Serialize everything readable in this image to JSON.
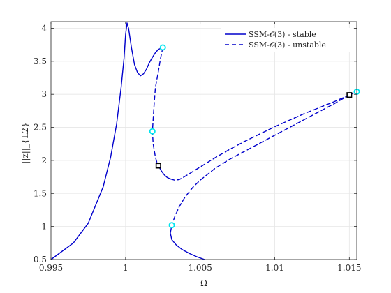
{
  "chart_data": {
    "type": "line",
    "xlabel": "Ω",
    "ylabel": "||z||_{L2}",
    "xlim": [
      0.995,
      1.0155
    ],
    "ylim": [
      0.5,
      4.1
    ],
    "xticks": [
      0.995,
      1,
      1.005,
      1.01,
      1.015
    ],
    "xtick_labels": [
      "0.995",
      "1",
      "1.005",
      "1.01",
      "1.015"
    ],
    "yticks": [
      0.5,
      1,
      1.5,
      2,
      2.5,
      3,
      3.5,
      4
    ],
    "ytick_labels": [
      "0.5",
      "1",
      "1.5",
      "2",
      "2.5",
      "3",
      "3.5",
      "4"
    ],
    "grid": true,
    "legend": {
      "placement": "top-right",
      "entries": [
        {
          "label": "SSM-𝒪(3) - stable",
          "style": "solid"
        },
        {
          "label": "SSM-𝒪(3) - unstable",
          "style": "dashed"
        }
      ]
    },
    "colors": {
      "line": "#0000cc",
      "cyan_marker": "#00e5ee",
      "black_marker": "#000000",
      "grid": "#e6e6e6"
    },
    "series": [
      {
        "style": "solid",
        "x": [
          0.995,
          0.9965,
          0.9975,
          0.9985,
          0.999,
          0.9994,
          0.9997,
          0.9999,
          1.0,
          1.0001,
          1.0002,
          1.0004,
          1.0006,
          1.0008,
          1.001,
          1.0012,
          1.0014,
          1.0016,
          1.0018,
          1.002,
          1.0022,
          1.0024,
          1.0025
        ],
        "y": [
          0.5,
          0.75,
          1.05,
          1.6,
          2.05,
          2.55,
          3.1,
          3.55,
          3.9,
          4.08,
          4.0,
          3.7,
          3.45,
          3.33,
          3.28,
          3.31,
          3.38,
          3.48,
          3.56,
          3.63,
          3.68,
          3.7,
          3.71
        ]
      },
      {
        "style": "dashed",
        "x": [
          1.0025,
          1.00235,
          1.0022,
          1.002,
          1.0019,
          1.0018,
          1.00185,
          1.002,
          1.0021,
          1.0022
        ],
        "y": [
          3.71,
          3.55,
          3.35,
          3.1,
          2.8,
          2.44,
          2.25,
          2.05,
          1.97,
          1.92
        ]
      },
      {
        "style": "solid",
        "x": [
          1.0022,
          1.0024,
          1.0026,
          1.0028,
          1.003
        ],
        "y": [
          1.92,
          1.84,
          1.78,
          1.74,
          1.72
        ]
      },
      {
        "style": "dashed",
        "x": [
          1.003,
          1.0033,
          1.0036,
          1.004,
          1.0045,
          1.005,
          1.006,
          1.007,
          1.008,
          1.009,
          1.01,
          1.011,
          1.012,
          1.013,
          1.014,
          1.015
        ],
        "y": [
          1.72,
          1.7,
          1.71,
          1.76,
          1.83,
          1.9,
          2.04,
          2.17,
          2.29,
          2.4,
          2.51,
          2.61,
          2.71,
          2.8,
          2.89,
          2.99
        ]
      },
      {
        "style": "dashed",
        "x": [
          1.015,
          1.014,
          1.013,
          1.012,
          1.011,
          1.01,
          1.009,
          1.008,
          1.007,
          1.006,
          1.005,
          1.0045,
          1.004,
          1.0036,
          1.0033,
          1.0031
        ],
        "y": [
          2.99,
          2.86,
          2.74,
          2.62,
          2.5,
          2.38,
          2.26,
          2.14,
          2.02,
          1.88,
          1.7,
          1.59,
          1.45,
          1.3,
          1.15,
          1.02
        ]
      },
      {
        "style": "solid",
        "x": [
          1.0031,
          1.003,
          1.0031,
          1.0034,
          1.0038,
          1.0043,
          1.0048,
          1.0053
        ],
        "y": [
          1.02,
          0.9,
          0.8,
          0.72,
          0.65,
          0.59,
          0.54,
          0.5
        ]
      },
      {
        "style": "dashed",
        "x": [
          1.015,
          1.0155
        ],
        "y": [
          2.99,
          3.04
        ]
      }
    ],
    "markers": [
      {
        "type": "cyan",
        "x": 1.0025,
        "y": 3.71
      },
      {
        "type": "cyan",
        "x": 1.0018,
        "y": 2.44
      },
      {
        "type": "cyan",
        "x": 1.0031,
        "y": 1.02
      },
      {
        "type": "cyan",
        "x": 1.0155,
        "y": 3.04
      },
      {
        "type": "black",
        "x": 1.0022,
        "y": 1.92
      },
      {
        "type": "black",
        "x": 1.015,
        "y": 2.99
      }
    ]
  }
}
